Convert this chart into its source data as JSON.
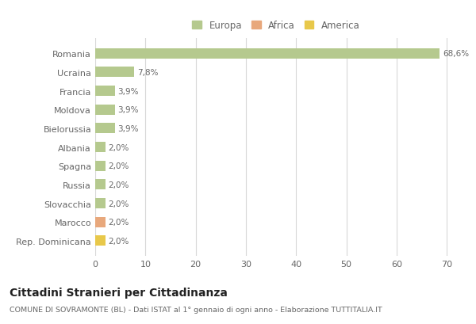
{
  "categories": [
    "Romania",
    "Ucraina",
    "Francia",
    "Moldova",
    "Bielorussia",
    "Albania",
    "Spagna",
    "Russia",
    "Slovacchia",
    "Marocco",
    "Rep. Dominicana"
  ],
  "values": [
    68.6,
    7.8,
    3.9,
    3.9,
    3.9,
    2.0,
    2.0,
    2.0,
    2.0,
    2.0,
    2.0
  ],
  "labels": [
    "68,6%",
    "7,8%",
    "3,9%",
    "3,9%",
    "3,9%",
    "2,0%",
    "2,0%",
    "2,0%",
    "2,0%",
    "2,0%",
    "2,0%"
  ],
  "colors": [
    "#b5c98e",
    "#b5c98e",
    "#b5c98e",
    "#b5c98e",
    "#b5c98e",
    "#b5c98e",
    "#b5c98e",
    "#b5c98e",
    "#b5c98e",
    "#e8a87c",
    "#e8c84a"
  ],
  "legend": [
    {
      "label": "Europa",
      "color": "#b5c98e"
    },
    {
      "label": "Africa",
      "color": "#e8a87c"
    },
    {
      "label": "America",
      "color": "#e8c84a"
    }
  ],
  "xlim": [
    0,
    72
  ],
  "xticks": [
    0,
    10,
    20,
    30,
    40,
    50,
    60,
    70
  ],
  "title": "Cittadini Stranieri per Cittadinanza",
  "subtitle": "COMUNE DI SOVRAMONTE (BL) - Dati ISTAT al 1° gennaio di ogni anno - Elaborazione TUTTITALIA.IT",
  "background_color": "#ffffff",
  "grid_color": "#d8d8d8",
  "bar_height": 0.55
}
